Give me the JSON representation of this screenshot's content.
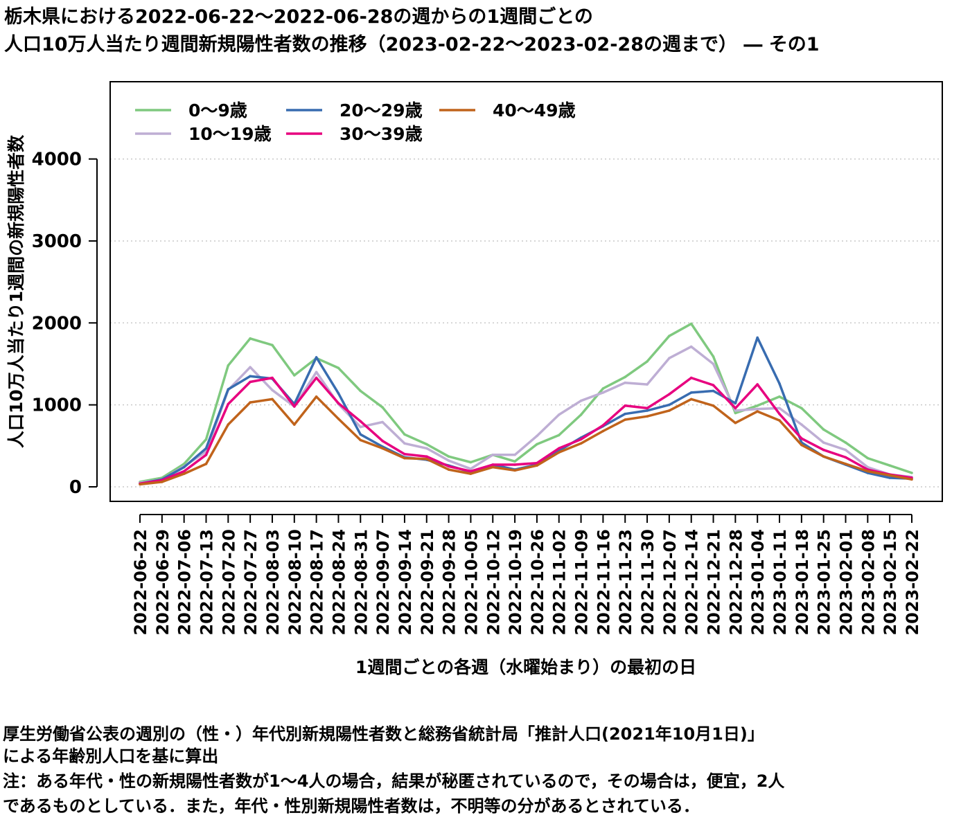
{
  "title": {
    "line1": "栃木県における2022-06-22～2022-06-28の週からの1週間ごとの",
    "line2": "人口10万人当たり週間新規陽性者数の推移（2023-02-22～2023-02-28の週まで） ― その1"
  },
  "notes": {
    "line1": "厚生労働省公表の週別の（性・）年代別新規陽性者数と総務省統計局「推計人口(2021年10月1日)」",
    "line2": "による年齢別人口を基に算出",
    "line3": "注：ある年代・性の新規陽性者数が1～4人の場合，結果が秘匿されているので，その場合は，便宜，2人",
    "line4": "であるものとしている．また，年代・性別新規陽性者数は，不明等の分があるとされている．"
  },
  "chart_data": {
    "type": "line",
    "xlabel": "1週間ごとの各週（水曜始まり）の最初の日",
    "ylabel": "人口10万人当たり1週間の新規陽性者数",
    "ylim": [
      -200,
      4950
    ],
    "yticks": [
      0,
      1000,
      2000,
      3000,
      4000
    ],
    "grid": "horizontal dotted",
    "legend_position": "top-left",
    "categories": [
      "2022-06-22",
      "2022-06-29",
      "2022-07-06",
      "2022-07-13",
      "2022-07-20",
      "2022-07-27",
      "2022-08-03",
      "2022-08-10",
      "2022-08-17",
      "2022-08-24",
      "2022-08-31",
      "2022-09-07",
      "2022-09-14",
      "2022-09-21",
      "2022-09-28",
      "2022-10-05",
      "2022-10-12",
      "2022-10-19",
      "2022-10-26",
      "2022-11-02",
      "2022-11-09",
      "2022-11-16",
      "2022-11-23",
      "2022-11-30",
      "2022-12-07",
      "2022-12-14",
      "2022-12-21",
      "2022-12-28",
      "2023-01-04",
      "2023-01-11",
      "2023-01-18",
      "2023-01-25",
      "2023-02-01",
      "2023-02-08",
      "2023-02-15",
      "2023-02-22"
    ],
    "series": [
      {
        "name": "0～9歳",
        "color": "#7fc97f",
        "values": [
          60,
          110,
          280,
          580,
          1480,
          1810,
          1730,
          1360,
          1570,
          1450,
          1170,
          970,
          640,
          520,
          370,
          300,
          390,
          310,
          520,
          630,
          880,
          1200,
          1340,
          1530,
          1840,
          1990,
          1590,
          900,
          990,
          1100,
          960,
          700,
          540,
          350,
          260,
          170
        ]
      },
      {
        "name": "10～19歳",
        "color": "#beaed4",
        "values": [
          50,
          90,
          250,
          430,
          1180,
          1460,
          1180,
          980,
          1400,
          1010,
          730,
          790,
          530,
          470,
          320,
          220,
          390,
          390,
          620,
          880,
          1050,
          1150,
          1270,
          1250,
          1570,
          1710,
          1500,
          930,
          950,
          960,
          760,
          540,
          450,
          240,
          150,
          120
        ]
      },
      {
        "name": "20～29歳",
        "color": "#386cb0",
        "values": [
          40,
          90,
          240,
          470,
          1190,
          1350,
          1320,
          1010,
          1580,
          1140,
          640,
          490,
          360,
          330,
          260,
          180,
          270,
          210,
          270,
          440,
          600,
          740,
          890,
          930,
          1000,
          1150,
          1170,
          1020,
          1820,
          1260,
          540,
          370,
          270,
          170,
          110,
          100
        ]
      },
      {
        "name": "30～39歳",
        "color": "#e7007f",
        "values": [
          40,
          80,
          190,
          390,
          1010,
          1280,
          1330,
          980,
          1330,
          1020,
          800,
          560,
          400,
          370,
          250,
          190,
          270,
          270,
          290,
          470,
          580,
          750,
          990,
          960,
          1130,
          1330,
          1240,
          960,
          1250,
          890,
          590,
          450,
          360,
          210,
          150,
          110
        ]
      },
      {
        "name": "40～49歳",
        "color": "#c0631b",
        "values": [
          30,
          60,
          160,
          280,
          760,
          1030,
          1070,
          760,
          1100,
          830,
          570,
          470,
          350,
          340,
          210,
          160,
          240,
          200,
          260,
          420,
          530,
          680,
          820,
          860,
          930,
          1070,
          990,
          780,
          920,
          810,
          510,
          370,
          280,
          190,
          140,
          90
        ]
      }
    ]
  }
}
